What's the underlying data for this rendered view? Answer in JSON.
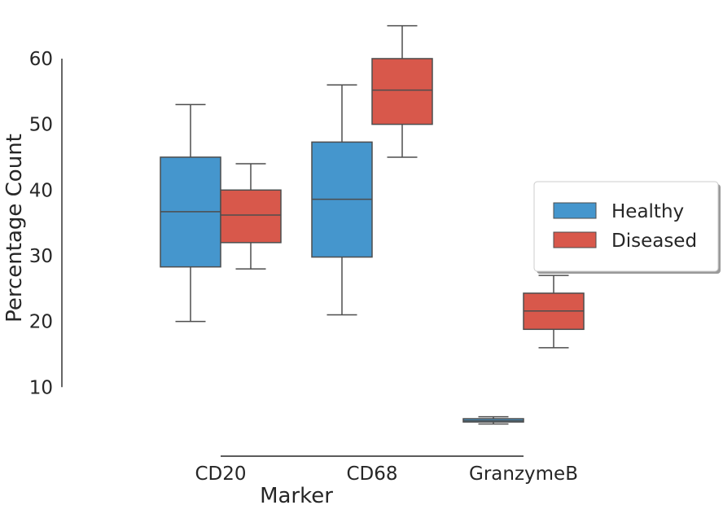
{
  "chart_data": {
    "type": "box",
    "xlabel": "Marker",
    "ylabel": "Percentage Count",
    "categories": [
      "CD20",
      "CD68",
      "GranzymeB"
    ],
    "y_ticks": [
      10,
      20,
      30,
      40,
      50,
      60
    ],
    "ylim": [
      -0.5,
      65.2
    ],
    "grid": false,
    "legend_position": "right",
    "series": [
      {
        "name": "Healthy",
        "color": "#4596cd",
        "boxes": [
          {
            "category": "CD20",
            "whisker_low": 20,
            "q1": 28.3,
            "median": 36.7,
            "q3": 45,
            "whisker_high": 53
          },
          {
            "category": "CD68",
            "whisker_low": 21,
            "q1": 29.8,
            "median": 38.6,
            "q3": 47.3,
            "whisker_high": 56
          },
          {
            "category": "GranzymeB",
            "whisker_low": 4.4,
            "q1": 4.7,
            "median": 4.9,
            "q3": 5.2,
            "whisker_high": 5.5
          }
        ]
      },
      {
        "name": "Diseased",
        "color": "#d8584b",
        "boxes": [
          {
            "category": "CD20",
            "whisker_low": 28,
            "q1": 32,
            "median": 36.2,
            "q3": 40,
            "whisker_high": 44
          },
          {
            "category": "CD68",
            "whisker_low": 45,
            "q1": 50,
            "median": 55.2,
            "q3": 60,
            "whisker_high": 65
          },
          {
            "category": "GranzymeB",
            "whisker_low": 16,
            "q1": 18.8,
            "median": 21.6,
            "q3": 24.3,
            "whisker_high": 27
          }
        ]
      }
    ]
  }
}
